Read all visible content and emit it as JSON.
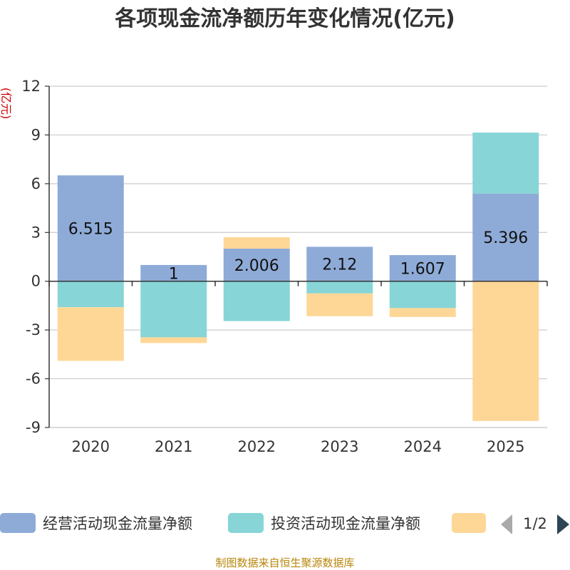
{
  "chart_data": {
    "type": "bar",
    "stacked": true,
    "title": "各项现金流净额历年变化情况(亿元)",
    "ylabel": "(亿元)",
    "xlabel": "",
    "categories": [
      "2020",
      "2021",
      "2022",
      "2023",
      "2024",
      "2025"
    ],
    "ylim": [
      -9,
      12
    ],
    "yticks": [
      12,
      9,
      6,
      3,
      0,
      -3,
      -6,
      -9
    ],
    "grid": true,
    "series": [
      {
        "name": "经营活动现金流量净额",
        "color": "#8eabd8",
        "values": [
          6.515,
          1,
          2.006,
          2.12,
          1.607,
          5.396
        ],
        "show_labels": true
      },
      {
        "name": "投资活动现金流量净额",
        "color": "#87d5d6",
        "values": [
          -1.6,
          -3.45,
          -2.45,
          -0.75,
          -1.65,
          3.75
        ],
        "show_labels": false
      },
      {
        "name": "",
        "color": "#fed797",
        "values": [
          -3.3,
          -0.35,
          0.7,
          -1.4,
          -0.55,
          -8.6
        ],
        "show_labels": false
      }
    ]
  },
  "legend": {
    "page_indicator": "1/2",
    "prev_icon": "triangle-left-icon",
    "next_icon": "triangle-right-icon",
    "colors": {
      "disabled_arrow": "#aaaaaa",
      "active_arrow": "#2f4554"
    }
  },
  "footer": {
    "source": "制图数据来自恒生聚源数据库"
  }
}
